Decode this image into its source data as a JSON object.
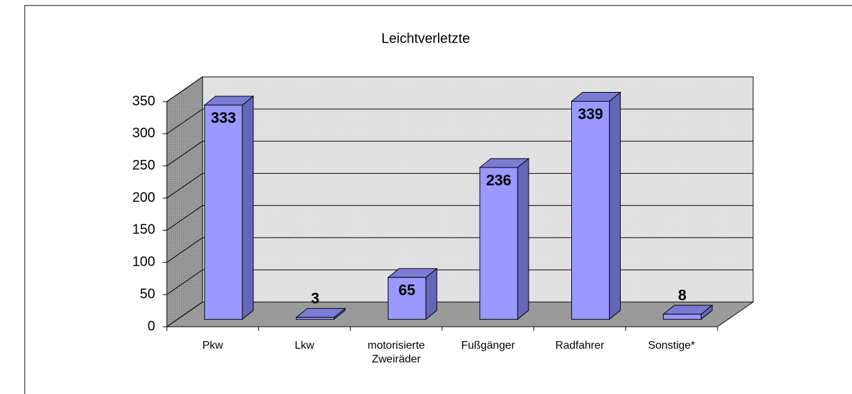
{
  "chart_data": {
    "type": "bar",
    "title": "Leichtverletzte",
    "categories": [
      "Pkw",
      "Lkw",
      "motorisierte\nZweiräder",
      "Fußgänger",
      "Radfahrer",
      "Sonstige*"
    ],
    "values": [
      333,
      3,
      65,
      236,
      339,
      8
    ],
    "color": "#9999ff",
    "ylim": [
      0,
      350
    ],
    "yticks": [
      0,
      50,
      100,
      150,
      200,
      250,
      300,
      350
    ],
    "grid": true
  }
}
